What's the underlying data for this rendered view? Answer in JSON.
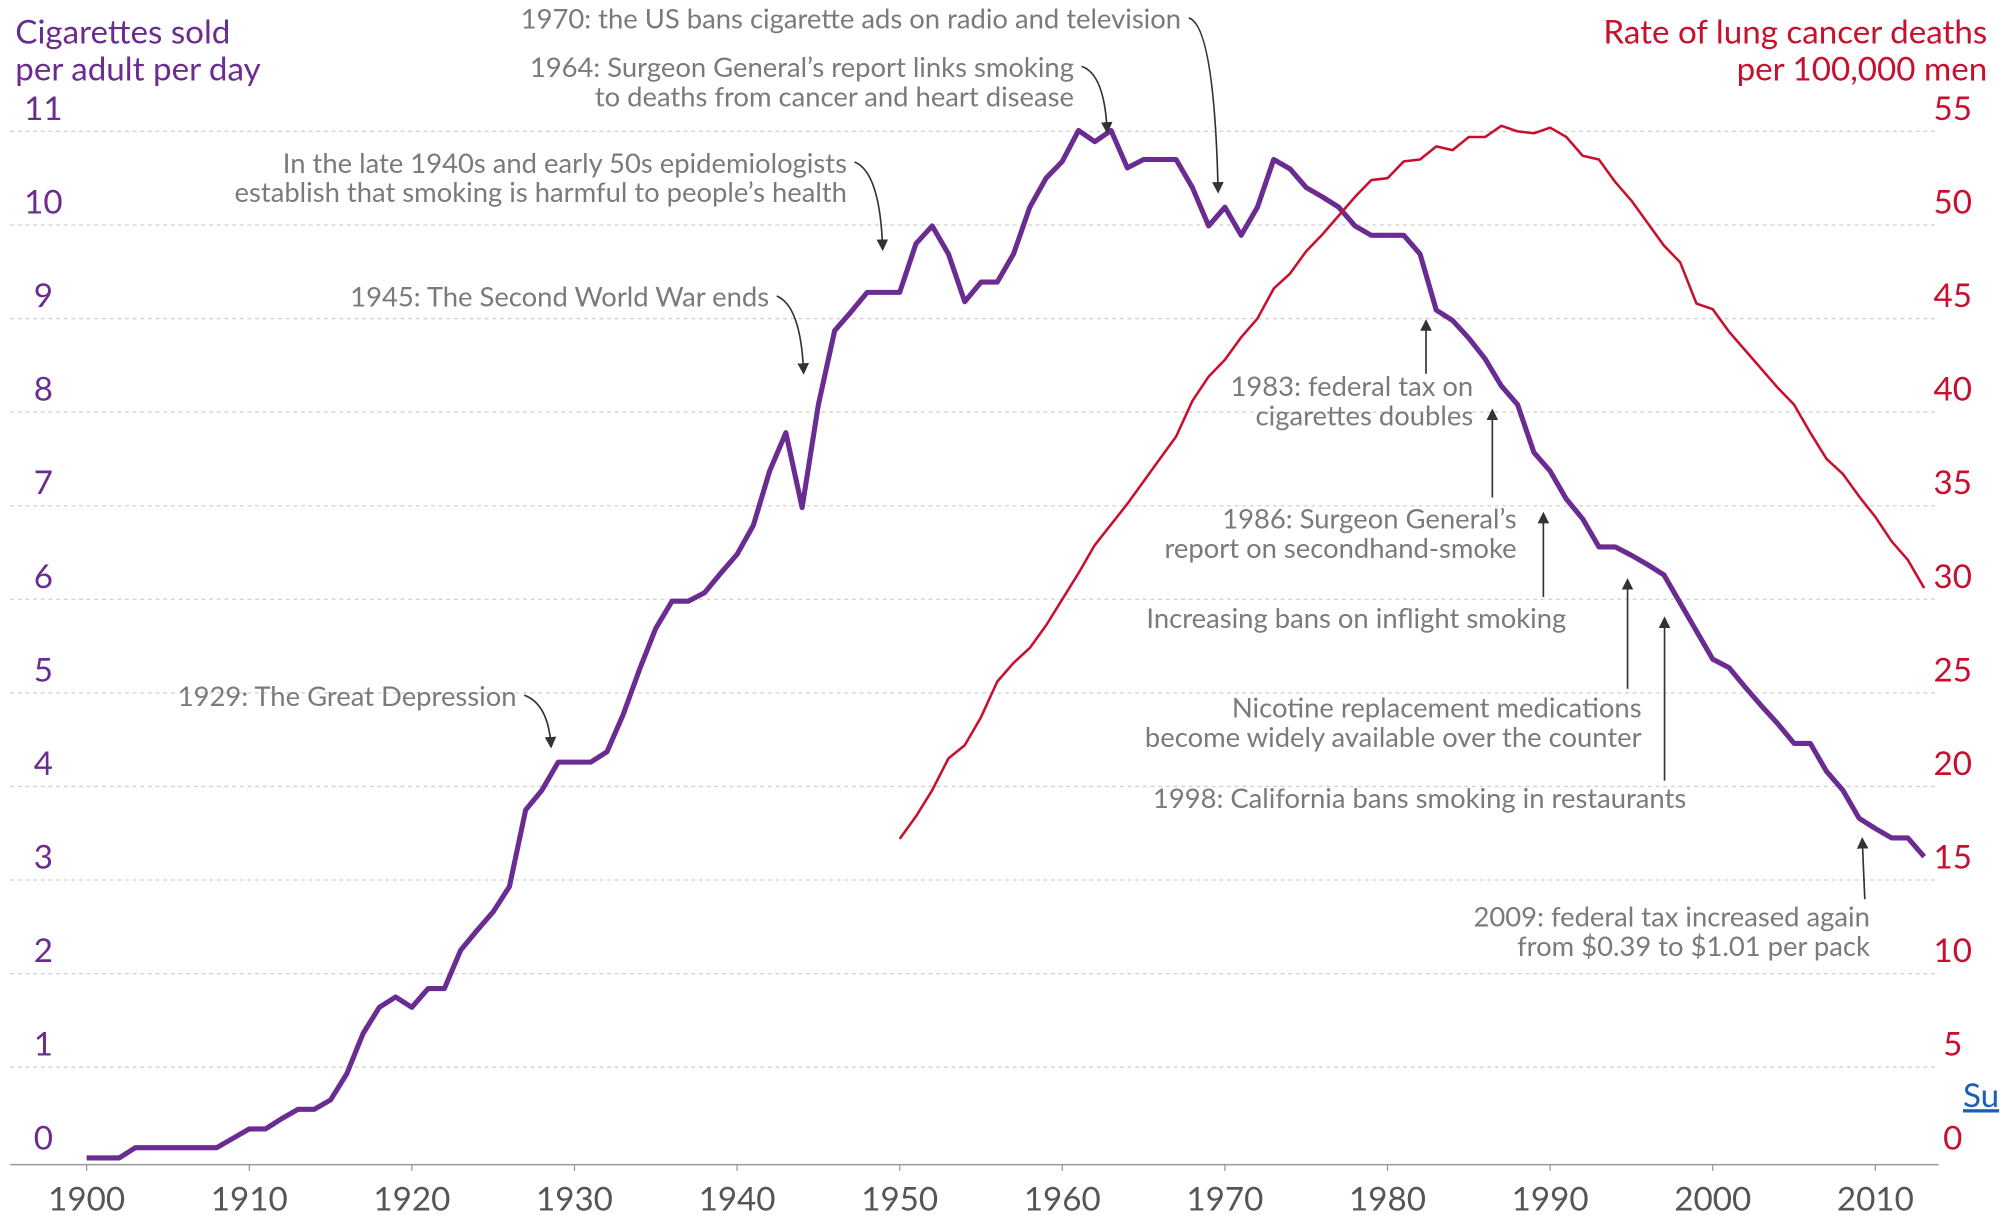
{
  "chart_data": {
    "type": "line",
    "y_label": [
      "Cigarettes sold",
      "per adult per day"
    ],
    "y2_label": [
      "Rate of lung cancer deaths",
      "per 100,000 men"
    ],
    "source_link": "Su",
    "x": [
      1900,
      1901,
      1902,
      1903,
      1904,
      1905,
      1906,
      1907,
      1908,
      1909,
      1910,
      1911,
      1912,
      1913,
      1914,
      1915,
      1916,
      1917,
      1918,
      1919,
      1920,
      1921,
      1922,
      1923,
      1924,
      1925,
      1926,
      1927,
      1928,
      1929,
      1930,
      1931,
      1932,
      1933,
      1934,
      1935,
      1936,
      1937,
      1938,
      1939,
      1940,
      1941,
      1942,
      1943,
      1944,
      1945,
      1946,
      1947,
      1948,
      1949,
      1950,
      1951,
      1952,
      1953,
      1954,
      1955,
      1956,
      1957,
      1958,
      1959,
      1960,
      1961,
      1962,
      1963,
      1964,
      1965,
      1966,
      1967,
      1968,
      1969,
      1970,
      1971,
      1972,
      1973,
      1974,
      1975,
      1976,
      1977,
      1978,
      1979,
      1980,
      1981,
      1982,
      1983,
      1984,
      1985,
      1986,
      1987,
      1988,
      1989,
      1990,
      1991,
      1992,
      1993,
      1994,
      1995,
      1996,
      1997,
      1998,
      1999,
      2000,
      2001,
      2002,
      2003,
      2004,
      2005,
      2006,
      2007,
      2008,
      2009,
      2010,
      2011,
      2012,
      2013
    ],
    "series": [
      {
        "name": "Cigarettes sold per adult per day",
        "color": "#6b2c91",
        "axis": "y",
        "values": [
          0.03,
          0.03,
          0.03,
          0.14,
          0.14,
          0.14,
          0.14,
          0.14,
          0.14,
          0.24,
          0.34,
          0.34,
          0.45,
          0.55,
          0.55,
          0.65,
          0.93,
          1.36,
          1.64,
          1.75,
          1.64,
          1.84,
          1.84,
          2.25,
          2.46,
          2.66,
          2.93,
          3.75,
          3.96,
          4.26,
          4.26,
          4.26,
          4.37,
          4.77,
          5.25,
          5.69,
          5.98,
          5.98,
          6.07,
          6.28,
          6.48,
          6.79,
          7.37,
          7.78,
          6.98,
          8.08,
          8.87,
          9.07,
          9.28,
          9.28,
          9.28,
          9.8,
          9.99,
          9.69,
          9.18,
          9.39,
          9.39,
          9.69,
          10.19,
          10.5,
          10.68,
          11.01,
          10.89,
          11.01,
          10.61,
          10.7,
          10.7,
          10.7,
          10.4,
          9.99,
          10.19,
          9.89,
          10.19,
          10.7,
          10.6,
          10.4,
          10.3,
          10.19,
          9.99,
          9.89,
          9.89,
          9.89,
          9.69,
          9.09,
          8.98,
          8.79,
          8.57,
          8.28,
          8.08,
          7.57,
          7.37,
          7.07,
          6.86,
          6.56,
          6.56,
          6.47,
          6.37,
          6.26,
          5.96,
          5.66,
          5.36,
          5.27,
          5.06,
          4.86,
          4.67,
          4.46,
          4.46,
          4.16,
          3.96,
          3.66,
          3.55,
          3.45,
          3.45,
          3.25
        ]
      },
      {
        "name": "Rate of lung cancer deaths per 100,000 men",
        "color": "#c8102e",
        "axis": "y2",
        "values": [
          null,
          null,
          null,
          null,
          null,
          null,
          null,
          null,
          null,
          null,
          null,
          null,
          null,
          null,
          null,
          null,
          null,
          null,
          null,
          null,
          null,
          null,
          null,
          null,
          null,
          null,
          null,
          null,
          null,
          null,
          null,
          null,
          null,
          null,
          null,
          null,
          null,
          null,
          null,
          null,
          null,
          null,
          null,
          null,
          null,
          null,
          null,
          null,
          null,
          null,
          17.2,
          18.4,
          19.8,
          21.5,
          22.2,
          23.7,
          25.6,
          26.6,
          27.4,
          28.6,
          30.0,
          31.4,
          32.9,
          34.0,
          35.1,
          36.3,
          37.5,
          38.7,
          40.6,
          41.9,
          42.8,
          44.0,
          45.0,
          46.6,
          47.4,
          48.6,
          49.5,
          50.5,
          51.5,
          52.4,
          52.5,
          53.4,
          53.5,
          54.2,
          54.0,
          54.7,
          54.7,
          55.3,
          55.0,
          54.9,
          55.2,
          54.7,
          53.7,
          53.5,
          52.3,
          51.3,
          50.1,
          48.9,
          48.0,
          45.8,
          45.5,
          44.3,
          43.3,
          42.3,
          41.3,
          40.4,
          38.9,
          37.5,
          36.7,
          35.5,
          34.4,
          33.1,
          32.1,
          30.6
        ]
      }
    ],
    "xlim": [
      1895.3,
      2013.9
    ],
    "xticks": [
      1900,
      1910,
      1920,
      1930,
      1940,
      1950,
      1960,
      1970,
      1980,
      1990,
      2000,
      2010
    ],
    "ylim": [
      0,
      11
    ],
    "yticks": [
      0,
      1,
      2,
      3,
      4,
      5,
      6,
      7,
      8,
      9,
      10,
      11
    ],
    "y2lim": [
      0,
      55
    ],
    "y2ticks": [
      0,
      5,
      10,
      15,
      20,
      25,
      30,
      35,
      40,
      45,
      50,
      55
    ],
    "grid": true,
    "annotations": [
      [
        "1970: the US bans cigarette ads on radio and television"
      ],
      [
        "1964: Surgeon General’s report links smoking",
        "to deaths from cancer and heart disease"
      ],
      [
        "In the late 1940s and early 50s epidemiologists",
        "establish that smoking is harmful to people’s health"
      ],
      [
        "1945: The Second World War ends"
      ],
      [
        "1929: The Great Depression"
      ],
      [
        "1983: federal tax on",
        "cigarettes doubles"
      ],
      [
        "1986: Surgeon General’s",
        "report on secondhand-smoke"
      ],
      [
        "Increasing bans on inflight smoking"
      ],
      [
        "Nicotine replacement medications",
        "become widely available over the counter"
      ],
      [
        "1998: California bans smoking in restaurants"
      ],
      [
        "2009: federal tax increased again",
        "from $0.39 to $1.01 per pack"
      ]
    ]
  }
}
